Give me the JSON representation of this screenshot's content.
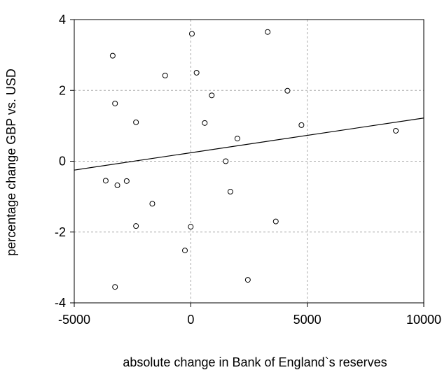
{
  "chart_data": {
    "type": "scatter",
    "title": "",
    "xlabel": "absolute change in Bank of England`s reserves",
    "ylabel": "percentage change GBP vs. USD",
    "xlim": [
      -5000,
      10000
    ],
    "ylim": [
      -4,
      4
    ],
    "xticks": [
      {
        "value": -5000,
        "label": "-5000"
      },
      {
        "value": 0,
        "label": "0"
      },
      {
        "value": 5000,
        "label": "5000"
      },
      {
        "value": 10000,
        "label": "10000"
      }
    ],
    "yticks": [
      {
        "value": -4,
        "label": "-4"
      },
      {
        "value": -2,
        "label": "-2"
      },
      {
        "value": 0,
        "label": "0"
      },
      {
        "value": 2,
        "label": "2"
      },
      {
        "value": 4,
        "label": "4"
      }
    ],
    "grid": true,
    "legend": "none",
    "points": [
      {
        "x": -3350,
        "y": 2.98
      },
      {
        "x": 50,
        "y": 3.6
      },
      {
        "x": 3300,
        "y": 3.65
      },
      {
        "x": -1100,
        "y": 2.42
      },
      {
        "x": 250,
        "y": 2.5
      },
      {
        "x": -3250,
        "y": 1.63
      },
      {
        "x": 900,
        "y": 1.86
      },
      {
        "x": 4150,
        "y": 1.99
      },
      {
        "x": -2350,
        "y": 1.1
      },
      {
        "x": 600,
        "y": 1.08
      },
      {
        "x": 4750,
        "y": 1.02
      },
      {
        "x": 8800,
        "y": 0.86
      },
      {
        "x": 2000,
        "y": 0.64
      },
      {
        "x": 1500,
        "y": 0.0
      },
      {
        "x": -3650,
        "y": -0.55
      },
      {
        "x": -3150,
        "y": -0.68
      },
      {
        "x": -2750,
        "y": -0.56
      },
      {
        "x": 1700,
        "y": -0.86
      },
      {
        "x": -1650,
        "y": -1.2
      },
      {
        "x": 3650,
        "y": -1.7
      },
      {
        "x": -2350,
        "y": -1.83
      },
      {
        "x": 0,
        "y": -1.85
      },
      {
        "x": -250,
        "y": -2.52
      },
      {
        "x": 2450,
        "y": -3.35
      },
      {
        "x": -3250,
        "y": -3.55
      }
    ],
    "fit_line": {
      "type": "linear",
      "x": [
        -5000,
        10000
      ],
      "y": [
        -0.25,
        1.22
      ]
    },
    "colors": {
      "marker_stroke": "#000000",
      "line": "#000000",
      "grid": "#aaaaaa",
      "frame": "#000000"
    }
  }
}
